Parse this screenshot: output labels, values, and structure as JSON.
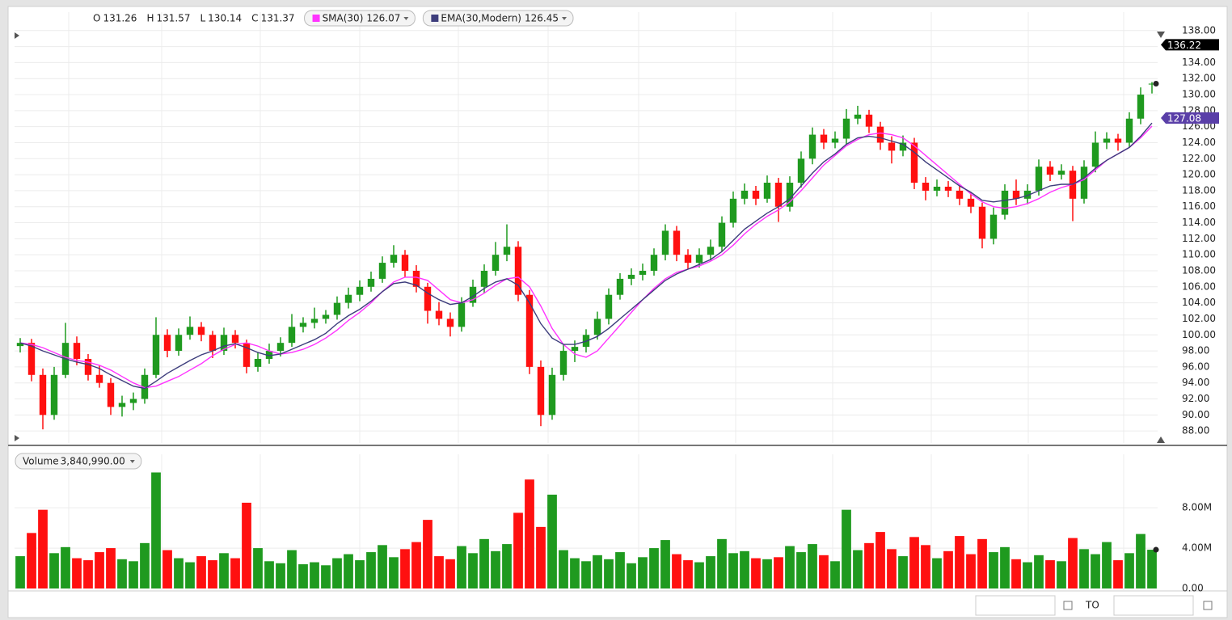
{
  "chart_data": {
    "type": "candlestick",
    "ohlc": [
      {
        "label": "O",
        "value": 131.26
      },
      {
        "label": "H",
        "value": 131.57
      },
      {
        "label": "L",
        "value": 130.14
      },
      {
        "label": "C",
        "value": 131.37
      }
    ],
    "up_color": "#1f9a1f",
    "down_color": "#ff1010",
    "candles": [
      [
        98.6,
        99.6,
        97.8,
        99
      ],
      [
        99,
        99.5,
        94.2,
        95
      ],
      [
        95,
        95.8,
        88.2,
        90
      ],
      [
        90,
        96,
        89.4,
        95
      ],
      [
        95,
        101.5,
        94.6,
        99
      ],
      [
        99,
        99.8,
        96.2,
        97
      ],
      [
        97,
        97.6,
        94.3,
        95
      ],
      [
        95,
        96.2,
        93.4,
        94
      ],
      [
        94,
        94.6,
        90,
        91
      ],
      [
        91,
        92.4,
        89.8,
        91.5
      ],
      [
        91.5,
        92.8,
        90.6,
        92
      ],
      [
        92,
        95.8,
        91.4,
        95
      ],
      [
        95,
        102.2,
        94.6,
        100
      ],
      [
        100,
        100.7,
        97.2,
        98
      ],
      [
        98,
        100.8,
        97.4,
        100
      ],
      [
        100,
        102.3,
        99.4,
        101
      ],
      [
        101,
        101.6,
        99.2,
        100
      ],
      [
        100,
        100.5,
        97.1,
        98
      ],
      [
        98,
        100.9,
        97.5,
        100
      ],
      [
        100,
        100.6,
        98.3,
        99
      ],
      [
        99,
        99.4,
        95.2,
        96
      ],
      [
        96,
        97.8,
        95.4,
        97
      ],
      [
        97,
        98.9,
        96.4,
        98
      ],
      [
        98,
        99.7,
        97.3,
        99
      ],
      [
        99,
        102.6,
        98.5,
        101
      ],
      [
        101,
        102.2,
        100.3,
        101.5
      ],
      [
        101.5,
        103.4,
        100.8,
        102
      ],
      [
        102,
        103.1,
        101.4,
        102.5
      ],
      [
        102.5,
        104.8,
        101.9,
        104
      ],
      [
        104,
        105.9,
        103.3,
        105
      ],
      [
        105,
        106.8,
        104.2,
        106
      ],
      [
        106,
        107.9,
        105.4,
        107
      ],
      [
        107,
        109.8,
        106.5,
        109
      ],
      [
        109,
        111.2,
        108.4,
        110
      ],
      [
        110,
        110.6,
        107.2,
        108
      ],
      [
        108,
        108.7,
        105.3,
        106
      ],
      [
        106,
        106.5,
        101.4,
        103
      ],
      [
        103,
        104.1,
        101.2,
        102
      ],
      [
        102,
        102.8,
        99.8,
        101
      ],
      [
        101,
        104.7,
        100.4,
        104
      ],
      [
        104,
        106.9,
        103.5,
        106
      ],
      [
        106,
        108.8,
        105.2,
        108
      ],
      [
        108,
        111.6,
        107.4,
        110
      ],
      [
        110,
        113.8,
        109.2,
        111
      ],
      [
        111,
        111.7,
        104.2,
        105
      ],
      [
        105,
        105.6,
        95.1,
        96
      ],
      [
        96,
        96.8,
        88.6,
        90
      ],
      [
        90,
        95.9,
        89.4,
        95
      ],
      [
        95,
        98.8,
        94.3,
        98
      ],
      [
        98,
        99.3,
        96.6,
        98.5
      ],
      [
        98.5,
        100.7,
        97.8,
        100
      ],
      [
        100,
        102.9,
        99.4,
        102
      ],
      [
        102,
        105.8,
        101.3,
        105
      ],
      [
        105,
        107.7,
        104.4,
        107
      ],
      [
        107,
        108.3,
        106.2,
        107.5
      ],
      [
        107.5,
        108.9,
        106.8,
        108
      ],
      [
        108,
        110.8,
        107.4,
        110
      ],
      [
        110,
        113.8,
        109.3,
        113
      ],
      [
        113,
        113.6,
        109.2,
        110
      ],
      [
        110,
        110.7,
        108.2,
        109
      ],
      [
        109,
        110.8,
        108.4,
        110
      ],
      [
        110,
        111.9,
        109.3,
        111
      ],
      [
        111,
        114.8,
        110.4,
        114
      ],
      [
        114,
        117.9,
        113.4,
        117
      ],
      [
        117,
        118.9,
        116.3,
        118
      ],
      [
        118,
        118.6,
        116.2,
        117
      ],
      [
        117,
        119.9,
        116.5,
        119
      ],
      [
        119,
        119.6,
        114.1,
        116
      ],
      [
        116,
        119.8,
        115.4,
        119
      ],
      [
        119,
        122.9,
        118.4,
        122
      ],
      [
        122,
        125.9,
        121.3,
        125
      ],
      [
        125,
        125.7,
        123.2,
        124
      ],
      [
        124,
        125.4,
        123.3,
        124.5
      ],
      [
        124.5,
        128.2,
        123.8,
        127
      ],
      [
        127,
        128.6,
        126.3,
        127.5
      ],
      [
        127.5,
        128.1,
        125.2,
        126
      ],
      [
        126,
        126.6,
        123.1,
        124
      ],
      [
        124,
        124.8,
        121.4,
        123
      ],
      [
        123,
        124.9,
        122.3,
        124
      ],
      [
        124,
        124.6,
        118.2,
        119
      ],
      [
        119,
        119.7,
        116.8,
        118
      ],
      [
        118,
        119.4,
        117.3,
        118.5
      ],
      [
        118.5,
        119.2,
        117.2,
        118
      ],
      [
        118,
        118.6,
        116.2,
        117
      ],
      [
        117,
        117.8,
        115.2,
        116
      ],
      [
        116,
        116.5,
        110.8,
        112
      ],
      [
        112,
        115.9,
        111.3,
        115
      ],
      [
        115,
        118.8,
        114.4,
        118
      ],
      [
        118,
        119.4,
        116.2,
        117
      ],
      [
        117,
        118.8,
        116.3,
        118
      ],
      [
        118,
        121.9,
        117.4,
        121
      ],
      [
        121,
        121.7,
        119.2,
        120
      ],
      [
        120,
        121.3,
        119.4,
        120.5
      ],
      [
        120.5,
        121.1,
        114.2,
        117
      ],
      [
        117,
        121.8,
        116.4,
        121
      ],
      [
        121,
        125.4,
        120.3,
        124
      ],
      [
        124,
        125.3,
        123.2,
        124.5
      ],
      [
        124.5,
        125.1,
        123,
        124
      ],
      [
        124,
        127.8,
        123.4,
        127
      ],
      [
        127,
        130.9,
        126.3,
        130
      ],
      [
        131.26,
        131.57,
        130.14,
        131.37
      ]
    ],
    "series": [
      {
        "name": "SMA(30)",
        "color": "#ff33ff",
        "last": 126.07,
        "values": [
          99,
          98.8,
          98.4,
          97.8,
          97.2,
          96.8,
          96.6,
          96.2,
          95.6,
          94.8,
          94,
          93.4,
          93.6,
          94.2,
          94.8,
          95.6,
          96.4,
          97.4,
          98.2,
          98.8,
          99,
          98.6,
          98,
          97.6,
          97.8,
          98.2,
          98.8,
          99.6,
          100.6,
          101.8,
          102.8,
          104,
          105.4,
          106.6,
          107.2,
          107.2,
          106.8,
          105.6,
          104.4,
          104,
          104.4,
          105.2,
          106.2,
          107,
          107.2,
          106,
          103.6,
          100.8,
          98.8,
          97.6,
          97.2,
          98,
          99.6,
          101.2,
          102.8,
          104.4,
          105.8,
          107,
          107.8,
          108.2,
          108.6,
          109.2,
          110,
          111.2,
          112.6,
          113.8,
          114.8,
          115.6,
          116.6,
          118,
          119.6,
          121.2,
          122.4,
          123.6,
          124.4,
          125,
          125.2,
          125,
          124.6,
          123.6,
          122.4,
          121.2,
          120,
          118.8,
          117.6,
          116.6,
          116,
          115.8,
          116,
          116.4,
          117,
          117.8,
          118.4,
          118.8,
          119.4,
          120.6,
          121.8,
          122.6,
          123.4,
          124.6,
          126.07
        ]
      },
      {
        "name": "EMA(30,Modern)",
        "color": "#3d3d7c",
        "last": 126.45,
        "values": [
          99,
          98.6,
          98,
          97.5,
          97,
          96.6,
          96.3,
          95.8,
          95,
          94.3,
          93.6,
          93.3,
          94.2,
          95.2,
          96,
          96.8,
          97.5,
          98,
          98.6,
          98.9,
          98.4,
          97.8,
          97.4,
          97.6,
          98.2,
          98.8,
          99.4,
          100.2,
          101.4,
          102.4,
          103.2,
          104.2,
          105.4,
          106.4,
          106.6,
          106.2,
          105.2,
          104.4,
          103.8,
          104,
          104.8,
          105.8,
          106.6,
          107,
          106.2,
          104,
          101.4,
          99.6,
          98.8,
          98.8,
          99.2,
          99.8,
          100.8,
          102,
          103.2,
          104.4,
          105.6,
          106.8,
          107.6,
          108.2,
          108.8,
          109.4,
          110.4,
          111.8,
          113.2,
          114.2,
          115.2,
          116,
          117,
          118.6,
          120.2,
          121.6,
          122.6,
          123.8,
          124.6,
          124.8,
          124.6,
          124.2,
          123.8,
          122.8,
          121.6,
          120.6,
          119.6,
          118.6,
          117.8,
          116.8,
          116.6,
          116.8,
          117,
          117.4,
          118,
          118.6,
          118.8,
          118.8,
          119.6,
          120.8,
          121.8,
          122.6,
          123.4,
          124.8,
          126.45
        ]
      }
    ],
    "price_badges": [
      {
        "value": 136.22,
        "color": "#000000"
      },
      {
        "value": 127.08,
        "color": "#5a3fa8"
      }
    ],
    "ylim": [
      86.5,
      140.3
    ],
    "yticks": [
      {
        "value": 88,
        "label": "88.00"
      },
      {
        "value": 90,
        "label": "90.00"
      },
      {
        "value": 92,
        "label": "92.00"
      },
      {
        "value": 94,
        "label": "94.00"
      },
      {
        "value": 96,
        "label": "96.00"
      },
      {
        "value": 98,
        "label": "98.00"
      },
      {
        "value": 100,
        "label": "100.00"
      },
      {
        "value": 102,
        "label": "102.00"
      },
      {
        "value": 104,
        "label": "104.00"
      },
      {
        "value": 106,
        "label": "106.00"
      },
      {
        "value": 108,
        "label": "108.00"
      },
      {
        "value": 110,
        "label": "110.00"
      },
      {
        "value": 112,
        "label": "112.00"
      },
      {
        "value": 114,
        "label": "114.00"
      },
      {
        "value": 116,
        "label": "116.00"
      },
      {
        "value": 118,
        "label": "118.00"
      },
      {
        "value": 120,
        "label": "120.00"
      },
      {
        "value": 122,
        "label": "122.00"
      },
      {
        "value": 124,
        "label": "124.00"
      },
      {
        "value": 126,
        "label": "126.00"
      },
      {
        "value": 128,
        "label": "128.00"
      },
      {
        "value": 130,
        "label": "130.00"
      },
      {
        "value": 132,
        "label": "132.00"
      },
      {
        "value": 134,
        "label": "134.00"
      },
      {
        "value": 136,
        "label": "136.00"
      },
      {
        "value": 138,
        "label": "138.00"
      }
    ],
    "grid": true,
    "volume": {
      "label": "Volume",
      "value": 3840990,
      "value_label": "3,840,990.00",
      "ylim": [
        0,
        13300000
      ],
      "yticks": [
        {
          "value": 0,
          "label": "0.00"
        },
        {
          "value": 4000000,
          "label": "4.00M"
        },
        {
          "value": 8000000,
          "label": "8.00M"
        }
      ],
      "values": [
        3200000,
        5500000,
        7800000,
        3500000,
        4100000,
        3000000,
        2800000,
        3600000,
        4000000,
        2900000,
        2700000,
        4500000,
        11500000,
        3800000,
        3000000,
        2600000,
        3200000,
        2800000,
        3500000,
        3000000,
        8500000,
        4000000,
        2700000,
        2500000,
        3800000,
        2400000,
        2600000,
        2300000,
        3000000,
        3400000,
        2800000,
        3600000,
        4300000,
        3100000,
        3900000,
        4600000,
        6800000,
        3200000,
        2900000,
        4200000,
        3500000,
        4900000,
        3700000,
        4400000,
        7500000,
        10800000,
        6100000,
        9300000,
        3800000,
        3000000,
        2700000,
        3300000,
        2900000,
        3600000,
        2500000,
        3100000,
        4000000,
        4800000,
        3400000,
        2800000,
        2600000,
        3200000,
        4900000,
        3500000,
        3700000,
        3000000,
        2900000,
        3100000,
        4200000,
        3600000,
        4400000,
        3300000,
        2700000,
        7800000,
        3800000,
        4500000,
        5600000,
        3900000,
        3200000,
        5100000,
        4300000,
        3000000,
        3700000,
        5200000,
        3400000,
        4900000,
        3600000,
        4100000,
        2900000,
        2600000,
        3300000,
        2800000,
        2700000,
        5000000,
        3900000,
        3400000,
        4600000,
        2800000,
        3500000,
        5400000,
        3840990
      ]
    },
    "footer": {
      "to": "TO"
    }
  }
}
